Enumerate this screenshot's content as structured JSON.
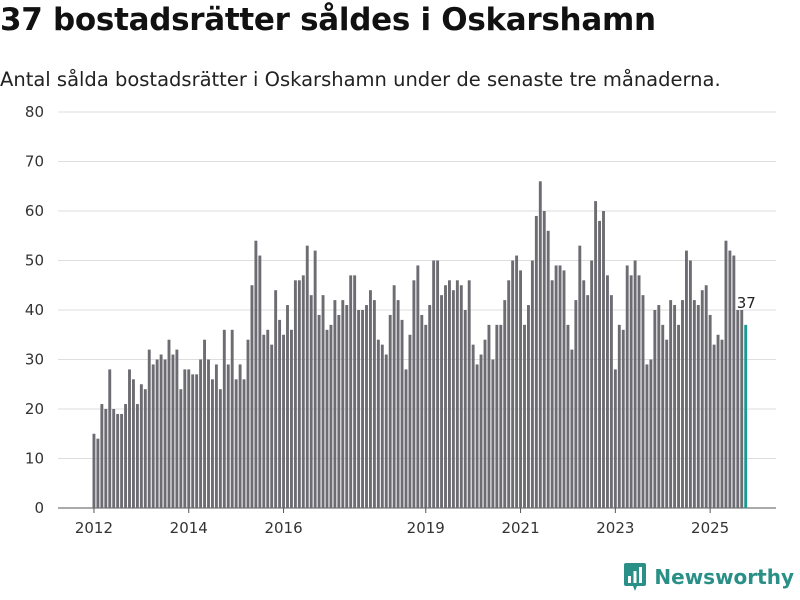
{
  "header": {
    "title": "37 bostadsrätter såldes i Oskarshamn",
    "subtitle": "Antal sålda bostadsrätter i Oskarshamn under de senaste tre månaderna."
  },
  "brand": {
    "name": "Newsworthy",
    "icon": "newsworthy-logo-icon",
    "color": "#2a8f86"
  },
  "colors": {
    "bar": "#6d6c72",
    "highlight": "#1d9a90",
    "grid": "#dedede",
    "axis": "#555555"
  },
  "chart_data": {
    "type": "bar",
    "title": "37 bostadsrätter såldes i Oskarshamn",
    "ylabel": "",
    "xlabel": "",
    "ylim": [
      0,
      80
    ],
    "yticks": [
      0,
      10,
      20,
      30,
      40,
      50,
      60,
      70,
      80
    ],
    "xticks": [
      {
        "label": "2012",
        "index": 0
      },
      {
        "label": "2014",
        "index": 24
      },
      {
        "label": "2016",
        "index": 48
      },
      {
        "label": "2019",
        "index": 84
      },
      {
        "label": "2021",
        "index": 108
      },
      {
        "label": "2023",
        "index": 132
      },
      {
        "label": "2025",
        "index": 156
      }
    ],
    "start_period": "2012-01",
    "annotation": {
      "label": "37",
      "index": 165
    },
    "values": [
      15,
      14,
      21,
      20,
      28,
      20,
      19,
      19,
      21,
      28,
      26,
      21,
      25,
      24,
      32,
      29,
      30,
      31,
      30,
      34,
      31,
      32,
      24,
      28,
      28,
      27,
      27,
      30,
      34,
      30,
      26,
      29,
      24,
      36,
      29,
      36,
      26,
      29,
      26,
      34,
      45,
      54,
      51,
      35,
      36,
      33,
      44,
      38,
      35,
      41,
      36,
      46,
      46,
      47,
      53,
      43,
      52,
      39,
      43,
      36,
      37,
      42,
      39,
      42,
      41,
      47,
      47,
      40,
      40,
      41,
      44,
      42,
      34,
      33,
      31,
      39,
      45,
      42,
      38,
      28,
      35,
      46,
      49,
      39,
      37,
      41,
      50,
      50,
      43,
      45,
      46,
      44,
      46,
      45,
      40,
      46,
      33,
      29,
      31,
      34,
      37,
      30,
      37,
      37,
      42,
      46,
      50,
      51,
      48,
      37,
      41,
      50,
      59,
      66,
      60,
      56,
      46,
      49,
      49,
      48,
      37,
      32,
      42,
      53,
      46,
      43,
      50,
      62,
      58,
      60,
      47,
      43,
      28,
      37,
      36,
      49,
      47,
      50,
      47,
      43,
      29,
      30,
      40,
      41,
      37,
      34,
      42,
      41,
      37,
      42,
      52,
      50,
      42,
      41,
      44,
      45,
      39,
      33,
      35,
      34,
      54,
      52,
      51,
      40,
      40,
      37
    ]
  }
}
